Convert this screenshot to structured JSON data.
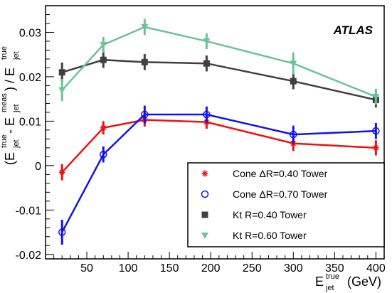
{
  "chart_data": {
    "type": "line",
    "annotation": "ATLAS",
    "xlabel": {
      "main": "E",
      "sup": "true",
      "sub": "jet",
      "unit": "(GeV)"
    },
    "ylabel": {
      "open": "(E",
      "sup1": "true",
      "sub1": "jet",
      "minus": " - E",
      "sup2": "meas",
      "sub2": "jet",
      "divide": ") / E",
      "sup3": "true",
      "sub3": "jet"
    },
    "xlim": [
      0,
      410
    ],
    "ylim": [
      -0.021,
      0.036
    ],
    "xticks": [
      50,
      100,
      150,
      200,
      250,
      300,
      350,
      400
    ],
    "xtick_labels": [
      "50",
      "100",
      "150",
      "200",
      "250",
      "300",
      "350",
      "400"
    ],
    "yticks": [
      -0.02,
      -0.01,
      0,
      0.01,
      0.02,
      0.03
    ],
    "ytick_labels": [
      "-0.02",
      "-0.01",
      "0",
      "0.01",
      "0.02",
      "0.03"
    ],
    "legend_position": "bottom-right",
    "series": [
      {
        "name": "Cone ΔR=0.40 Tower",
        "marker": "star",
        "color": "#ee1111",
        "x": [
          20,
          70,
          120,
          195,
          300,
          400
        ],
        "y": [
          -0.0015,
          0.0085,
          0.0103,
          0.0098,
          0.005,
          0.004
        ],
        "err": [
          0.0018,
          0.0015,
          0.0015,
          0.0015,
          0.0017,
          0.0017
        ]
      },
      {
        "name": "Cone ΔR=0.70 Tower",
        "marker": "circle",
        "color": "#1111ee",
        "x": [
          20,
          70,
          120,
          195,
          300,
          400
        ],
        "y": [
          -0.015,
          0.0025,
          0.0115,
          0.0115,
          0.007,
          0.0078
        ],
        "err": [
          0.0028,
          0.0018,
          0.002,
          0.0018,
          0.002,
          0.0018
        ]
      },
      {
        "name": "Kt R=0.40 Tower",
        "marker": "square",
        "color": "#404040",
        "x": [
          20,
          70,
          120,
          195,
          300,
          400
        ],
        "y": [
          0.021,
          0.0238,
          0.0233,
          0.023,
          0.019,
          0.0148
        ],
        "err": [
          0.0022,
          0.0018,
          0.0018,
          0.0018,
          0.0018,
          0.0017
        ]
      },
      {
        "name": "Kt R=0.60 Tower",
        "marker": "triangle-down",
        "color": "#6cc39a",
        "x": [
          20,
          70,
          120,
          195,
          300,
          400
        ],
        "y": [
          0.017,
          0.0272,
          0.0312,
          0.028,
          0.023,
          0.0155
        ],
        "err": [
          0.0025,
          0.0018,
          0.0018,
          0.0018,
          0.0025,
          0.0018
        ]
      }
    ]
  }
}
